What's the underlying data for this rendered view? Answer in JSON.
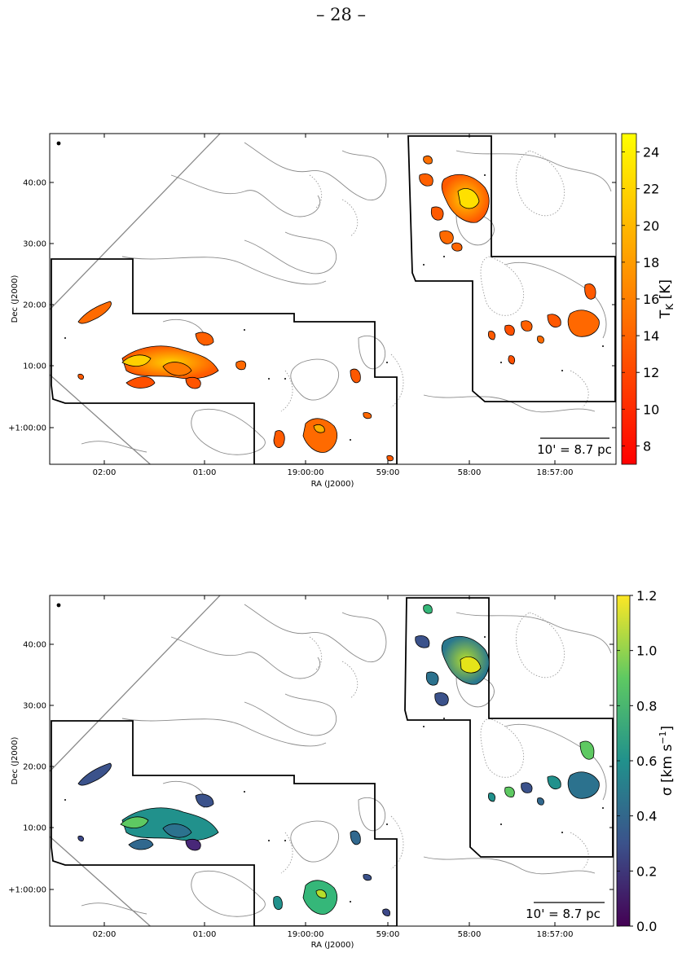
{
  "page": {
    "number_label": "– 28 –"
  },
  "figure": {
    "top_panel": {
      "xlabel": "RA (J2000)",
      "ylabel": "Dec (J2000)",
      "x_ticks": [
        "02:00",
        "01:00",
        "19:00:00",
        "59:00",
        "58:00",
        "18:57:00"
      ],
      "y_ticks": [
        "40:00",
        "30:00",
        "20:00",
        "10:00",
        "+1:00:00"
      ],
      "scalebar_label": "10' = 8.7 pc",
      "colorbar": {
        "label_main": "T",
        "label_sub": "K",
        "label_unit": " [K]",
        "ticks": [
          "24",
          "22",
          "20",
          "18",
          "16",
          "14",
          "12",
          "10",
          "8"
        ],
        "tick_values": [
          24,
          22,
          20,
          18,
          16,
          14,
          12,
          10,
          8
        ],
        "range": [
          7,
          25
        ],
        "colormap": "autumn",
        "color_low": "#ff0000",
        "color_high": "#ffff00"
      }
    },
    "bottom_panel": {
      "xlabel": "RA (J2000)",
      "ylabel": "Dec (J2000)",
      "x_ticks": [
        "02:00",
        "01:00",
        "19:00:00",
        "59:00",
        "58:00",
        "18:57:00"
      ],
      "y_ticks": [
        "40:00",
        "30:00",
        "20:00",
        "10:00",
        "+1:00:00"
      ],
      "scalebar_label": "10' = 8.7 pc",
      "colorbar": {
        "label_main": "σ [km s",
        "label_sup": "−1",
        "label_end": "]",
        "ticks": [
          "1.2",
          "1.0",
          "0.8",
          "0.6",
          "0.4",
          "0.2",
          "0.0"
        ],
        "tick_values": [
          1.2,
          1.0,
          0.8,
          0.6,
          0.4,
          0.2,
          0.0
        ],
        "range": [
          0.0,
          1.2
        ],
        "colormap": "viridis",
        "color_low": "#440154",
        "color_high": "#fde725"
      }
    }
  }
}
